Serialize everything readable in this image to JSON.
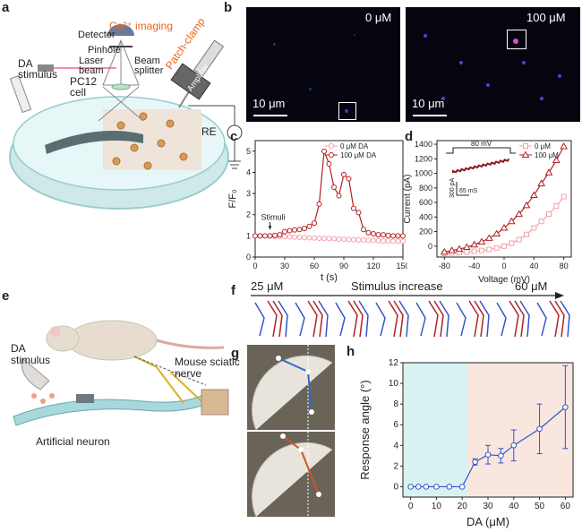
{
  "panels": {
    "a": {
      "label": "a",
      "ca_imaging": "Ca²⁺ imaging",
      "detector": "Detector",
      "pinhole": "Pinhole",
      "laser_beam": "Laser\nbeam",
      "beam_splitter": "Beam\nsplitter",
      "patch_clamp": "Patch-clamp",
      "amplifier": "Amplifier",
      "da_stimulus": "DA\nstimulus",
      "pc12_cell": "PC12\ncell",
      "re": "RE"
    },
    "b": {
      "label": "b",
      "left_conc": "0 μM",
      "right_conc": "100 μM",
      "left_scale": "10 μm",
      "right_scale": "10 μm"
    },
    "e": {
      "label": "e",
      "da_stimulus": "DA\nstimulus",
      "mouse_sciatic": "Mouse sciatic\nnerve",
      "artificial_neuron": "Artificial neuron"
    },
    "f": {
      "label": "f",
      "start": "25 μM",
      "middle": "Stimulus increase",
      "end": "60 μM"
    },
    "g": {
      "label": "g"
    }
  },
  "colors": {
    "red": "#b22222",
    "pink": "#f4a0a8",
    "blue": "#3355cc",
    "teal": "#d8f2f2",
    "peach": "#f8e6df"
  },
  "chart_data": [
    {
      "id": "c",
      "label": "c",
      "type": "line",
      "xlabel": "t (s)",
      "ylabel": "F/F₀",
      "xlim": [
        0,
        150
      ],
      "ylim": [
        0,
        5.5
      ],
      "xticks": [
        "0",
        "30",
        "60",
        "90",
        "120",
        "150"
      ],
      "yticks": [
        "0",
        "1",
        "2",
        "3",
        "4",
        "5"
      ],
      "annotation": "Stimuli",
      "series": [
        {
          "name": "0 μM DA",
          "color": "#f4a0a8",
          "x": [
            0,
            5,
            10,
            15,
            20,
            25,
            30,
            35,
            40,
            45,
            50,
            55,
            60,
            65,
            70,
            75,
            80,
            85,
            90,
            95,
            100,
            105,
            110,
            115,
            120,
            125,
            130,
            135,
            140,
            145,
            150
          ],
          "y": [
            1.0,
            1.0,
            1.0,
            1.0,
            0.98,
            0.97,
            0.96,
            0.95,
            0.94,
            0.93,
            0.92,
            0.91,
            0.9,
            0.89,
            0.88,
            0.87,
            0.86,
            0.85,
            0.84,
            0.83,
            0.82,
            0.81,
            0.8,
            0.79,
            0.78,
            0.77,
            0.76,
            0.76,
            0.75,
            0.75,
            0.75
          ]
        },
        {
          "name": "100 μM DA",
          "color": "#b22222",
          "x": [
            0,
            5,
            10,
            15,
            20,
            25,
            30,
            35,
            40,
            45,
            50,
            55,
            60,
            65,
            70,
            75,
            80,
            85,
            90,
            95,
            100,
            105,
            110,
            115,
            120,
            125,
            130,
            135,
            140,
            145,
            150
          ],
          "y": [
            1.0,
            1.0,
            1.0,
            1.0,
            1.02,
            1.05,
            1.2,
            1.25,
            1.28,
            1.3,
            1.35,
            1.45,
            1.6,
            2.5,
            5.0,
            4.4,
            3.3,
            2.9,
            3.9,
            3.7,
            2.3,
            2.1,
            1.3,
            1.15,
            1.1,
            1.05,
            1.05,
            1.02,
            1.0,
            1.0,
            1.0
          ]
        }
      ]
    },
    {
      "id": "d",
      "label": "d",
      "type": "line",
      "xlabel": "Voltage (mV)",
      "ylabel": "Current (pA)",
      "xlim": [
        -90,
        90
      ],
      "ylim": [
        -150,
        1450
      ],
      "xticks": [
        "-80",
        "-40",
        "0",
        "40",
        "80"
      ],
      "yticks": [
        "0",
        "200",
        "400",
        "600",
        "800",
        "1000",
        "1200",
        "1400"
      ],
      "inset": {
        "top_label": "80 mV",
        "scale_current": "300 pA",
        "scale_time": "65 mS"
      },
      "series": [
        {
          "name": "0 μM",
          "color": "#f4a0a8",
          "x": [
            -80,
            -70,
            -60,
            -50,
            -40,
            -30,
            -20,
            -10,
            0,
            10,
            20,
            30,
            40,
            50,
            60,
            70,
            80
          ],
          "y": [
            -100,
            -95,
            -90,
            -80,
            -70,
            -60,
            -45,
            -25,
            0,
            40,
            90,
            160,
            250,
            340,
            440,
            550,
            680
          ]
        },
        {
          "name": "100 μM",
          "color": "#b22222",
          "x": [
            -80,
            -70,
            -60,
            -50,
            -40,
            -30,
            -20,
            -10,
            0,
            10,
            20,
            30,
            40,
            50,
            60,
            70,
            80
          ],
          "y": [
            -80,
            -60,
            -40,
            -15,
            20,
            60,
            110,
            170,
            250,
            340,
            440,
            560,
            700,
            860,
            1010,
            1180,
            1370
          ]
        }
      ]
    },
    {
      "id": "h",
      "label": "h",
      "type": "line",
      "xlabel": "DA (μM)",
      "ylabel": "Response angle (°)",
      "xlim": [
        -3,
        63
      ],
      "ylim": [
        -1,
        12
      ],
      "xticks": [
        "0",
        "10",
        "20",
        "30",
        "40",
        "50",
        "60"
      ],
      "yticks": [
        "0",
        "2",
        "4",
        "6",
        "8",
        "10",
        "12"
      ],
      "threshold_x": 22,
      "series": [
        {
          "name": "Response",
          "color": "#3355cc",
          "x": [
            0,
            3,
            6,
            10,
            15,
            20,
            25,
            30,
            35,
            40,
            50,
            60
          ],
          "y": [
            0,
            0,
            0,
            0,
            0,
            0,
            2.4,
            3.1,
            3.0,
            4.0,
            5.6,
            7.7
          ],
          "err": [
            0,
            0,
            0,
            0,
            0,
            0,
            0.3,
            0.9,
            0.7,
            1.5,
            2.4,
            4.0
          ]
        }
      ]
    }
  ]
}
